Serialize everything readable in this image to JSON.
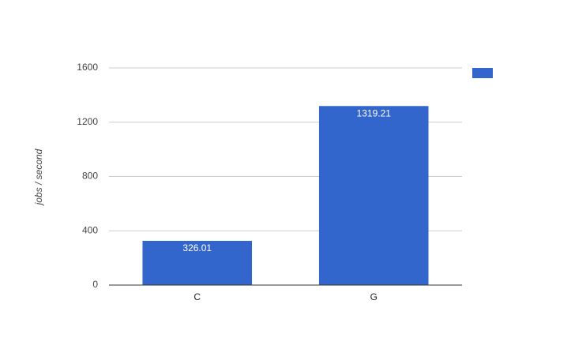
{
  "chart_data": {
    "type": "bar",
    "y_label": "jobs / second",
    "categories": [
      "C",
      "G"
    ],
    "series": [
      {
        "color": "#3366cc",
        "values": [
          326.01,
          1319.21
        ]
      }
    ],
    "ylim": [
      0,
      1600
    ],
    "yticks": [
      0,
      400,
      800,
      1200,
      1600
    ],
    "grid": true,
    "legend": "right",
    "data_labels": true
  }
}
